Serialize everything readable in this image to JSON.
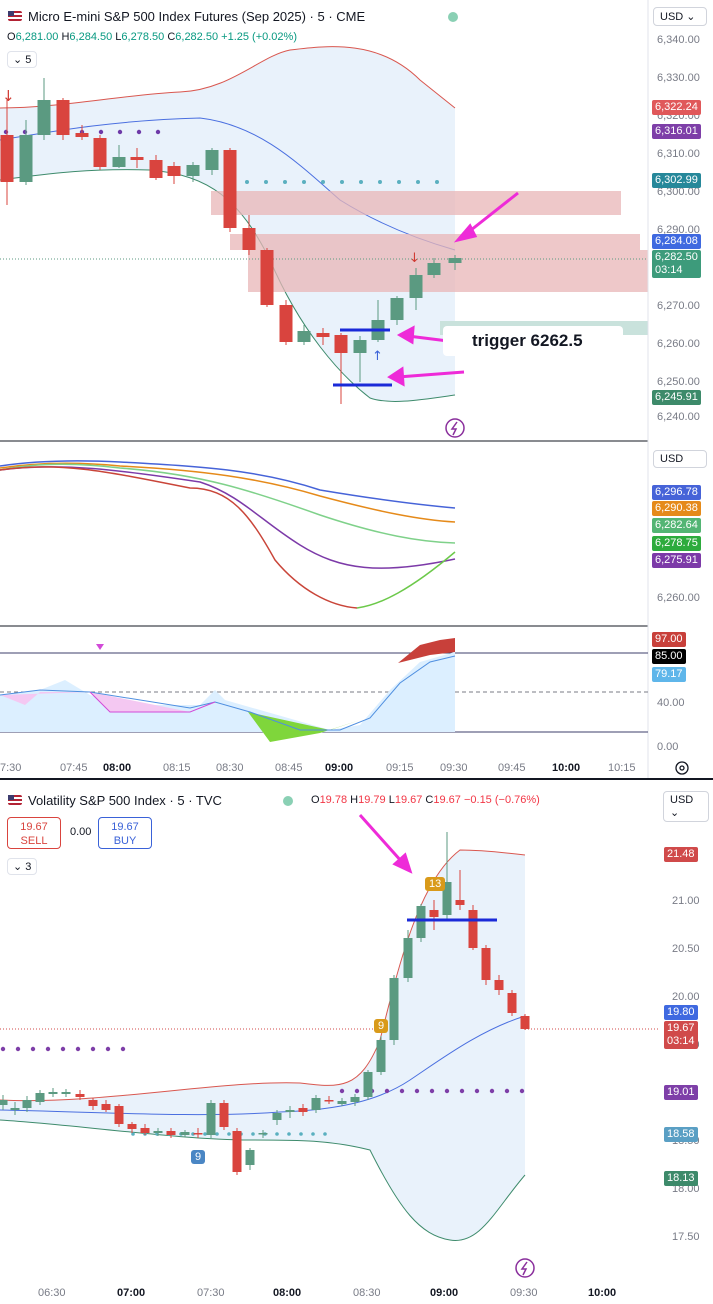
{
  "top_chart": {
    "title": "Micro E-mini S&P 500 Index Futures (Sep 2025) · 5 · CME",
    "ohlc": {
      "o_label": "O",
      "o": "6,281.00",
      "h_label": "H",
      "h": "6,284.50",
      "l_label": "L",
      "l": "6,278.50",
      "c_label": "C",
      "c": "6,282.50",
      "change": "+1.25 (+0.02%)"
    },
    "interval_button": "5",
    "currency": "USD",
    "axis_labels": [
      "6,340.00",
      "6,330.00",
      "6,320.00",
      "6,310.00",
      "6,300.00",
      "6,290.00",
      "6,280.00",
      "6,270.00",
      "6,260.00",
      "6,250.00",
      "6,240.00"
    ],
    "price_tags": [
      {
        "text": "6,322.24",
        "color": "#e0585a"
      },
      {
        "text": "6,316.01",
        "color": "#7e3fa8"
      },
      {
        "text": "6,302.99",
        "color": "#26889a"
      },
      {
        "text": "6,284.08",
        "color": "#3f69e0"
      },
      {
        "text": "6,282.50\n03:14",
        "color": "#3d9b7b"
      },
      {
        "text": "6,245.91",
        "color": "#3d8a6a"
      }
    ],
    "annotation": "trigger 6262.5"
  },
  "ma_pane": {
    "currency": "USD",
    "axis_labels": [
      "6,260.00"
    ],
    "price_tags": [
      {
        "text": "6,296.78",
        "color": "#4663d8"
      },
      {
        "text": "6,290.38",
        "color": "#e58a1a"
      },
      {
        "text": "6,282.64",
        "color": "#53b574"
      },
      {
        "text": "6,278.75",
        "color": "#2dab3d"
      },
      {
        "text": "6,275.91",
        "color": "#7c3aa8"
      }
    ]
  },
  "osc_pane": {
    "axis_labels": [
      "40.00",
      "0.00"
    ],
    "price_tags": [
      {
        "text": "97.00",
        "color": "#c8403a"
      },
      {
        "text": "85.00",
        "color": "#000000"
      },
      {
        "text": "79.17",
        "color": "#5fb6ea"
      }
    ]
  },
  "top_time_axis": [
    "7:30",
    "07:45",
    "08:00",
    "08:15",
    "08:30",
    "08:45",
    "09:00",
    "09:15",
    "09:30",
    "09:45",
    "10:00",
    "10:15"
  ],
  "bottom_chart": {
    "title": "Volatility S&P 500 Index · 5 · TVC",
    "ohlc": {
      "o_label": "O",
      "o": "19.78",
      "h_label": "H",
      "h": "19.79",
      "l_label": "L",
      "l": "19.67",
      "c_label": "C",
      "c": "19.67",
      "change": "−0.15 (−0.76%)"
    },
    "sell_price": "19.67",
    "sell_label": "SELL",
    "spread": "0.00",
    "buy_price": "19.67",
    "buy_label": "BUY",
    "interval_button": "3",
    "currency": "USD",
    "axis_labels": [
      "21.00",
      "20.50",
      "20.00",
      "19.50",
      "18.50",
      "18.00",
      "17.50"
    ],
    "price_tags": [
      {
        "text": "21.48",
        "color": "#d04a4a"
      },
      {
        "text": "19.80",
        "color": "#3f69e0"
      },
      {
        "text": "19.67\n03:14",
        "color": "#d04a4a"
      },
      {
        "text": "19.01",
        "color": "#7e3fa8"
      },
      {
        "text": "18.58",
        "color": "#5a9fc4"
      },
      {
        "text": "18.13",
        "color": "#3d8a6a"
      }
    ],
    "badges": [
      "13",
      "9",
      "9"
    ],
    "time_axis": [
      "06:30",
      "07:00",
      "07:30",
      "08:00",
      "08:30",
      "09:00",
      "09:30",
      "10:00"
    ]
  },
  "colors": {
    "up": "#5b9a81",
    "down": "#d9443e",
    "band_fill": "#e7f1fb",
    "magenta": "#ee2bd8",
    "blue_line": "#1a2ad8"
  }
}
